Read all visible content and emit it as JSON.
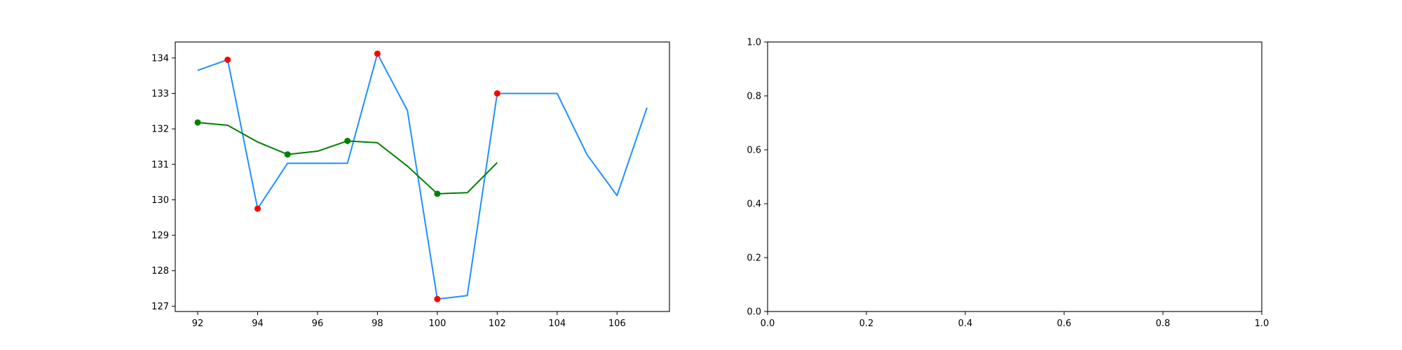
{
  "chart_data": [
    {
      "type": "line",
      "xlim": [
        91.25,
        107.75
      ],
      "ylim": [
        126.85,
        134.45
      ],
      "xticks": [
        92,
        94,
        96,
        98,
        100,
        102,
        104,
        106
      ],
      "yticks": [
        127,
        128,
        129,
        130,
        131,
        132,
        133,
        134
      ],
      "xtick_labels": [
        "92",
        "94",
        "96",
        "98",
        "100",
        "102",
        "104",
        "106"
      ],
      "ytick_labels": [
        "127",
        "128",
        "129",
        "130",
        "131",
        "132",
        "133",
        "134"
      ],
      "grid": false,
      "legend": null,
      "series": [
        {
          "color": "#1e90ff",
          "kind": "line",
          "x": [
            92,
            93,
            94,
            95,
            96,
            97,
            98,
            99,
            100,
            101,
            102,
            103,
            104,
            105,
            106,
            107
          ],
          "y": [
            133.65,
            133.95,
            129.75,
            131.03,
            131.03,
            131.03,
            134.12,
            132.52,
            127.2,
            127.3,
            133.0,
            133.0,
            133.0,
            131.27,
            130.12,
            132.6
          ]
        },
        {
          "color": "#008000",
          "kind": "line",
          "x": [
            92,
            93,
            94,
            95,
            96,
            97,
            98,
            99,
            100,
            101,
            102
          ],
          "y": [
            132.18,
            132.1,
            131.63,
            131.28,
            131.37,
            131.66,
            131.61,
            130.95,
            130.17,
            130.2,
            131.05
          ]
        },
        {
          "color": "#ff0000",
          "kind": "scatter",
          "x": [
            93,
            94,
            98,
            100,
            102
          ],
          "y": [
            133.95,
            129.75,
            134.12,
            127.2,
            133.0
          ]
        },
        {
          "color": "#008000",
          "kind": "scatter",
          "x": [
            92,
            95,
            97,
            100
          ],
          "y": [
            132.18,
            131.28,
            131.66,
            130.17
          ]
        }
      ]
    },
    {
      "type": "line",
      "xlim": [
        0.0,
        1.0
      ],
      "ylim": [
        0.0,
        1.0
      ],
      "xticks": [
        0.0,
        0.2,
        0.4,
        0.6,
        0.8,
        1.0
      ],
      "yticks": [
        0.0,
        0.2,
        0.4,
        0.6,
        0.8,
        1.0
      ],
      "xtick_labels": [
        "0.0",
        "0.2",
        "0.4",
        "0.6",
        "0.8",
        "1.0"
      ],
      "ytick_labels": [
        "0.0",
        "0.2",
        "0.4",
        "0.6",
        "0.8",
        "1.0"
      ],
      "grid": false,
      "legend": null,
      "series": []
    }
  ]
}
